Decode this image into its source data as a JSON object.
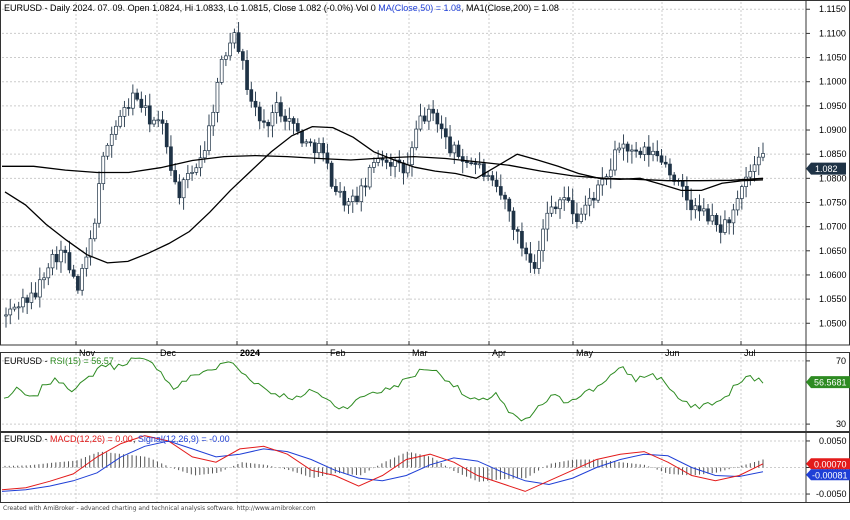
{
  "chart_data": {
    "type": "candlestick",
    "symbol": "EURUSD",
    "x_tick_labels": [
      "Nov",
      "Dec",
      "2024",
      "Feb",
      "Mar",
      "Apr",
      "May",
      "Jun",
      "Jul"
    ],
    "price_panel": {
      "header": {
        "symbol": "EURUSD",
        "info": " - Daily 2024. 07. 09. Open 1.0824, Hi 1.0833, Lo 1.0815, Close 1.082 (-0.0%) Vol 0 ",
        "ma50_label": "MA(Close,50) = 1.08",
        "ma_sep": ", ",
        "ma200_label": "MA1(Close,200) = 1.08"
      },
      "ylim": [
        1.0455,
        1.1165
      ],
      "y_ticks": [
        "1.0500",
        "1.0550",
        "1.0600",
        "1.0650",
        "1.0700",
        "1.0750",
        "1.0800",
        "1.0850",
        "1.0900",
        "1.0950",
        "1.1000",
        "1.1050",
        "1.1100",
        "1.1150"
      ],
      "last_close_label": "1.082",
      "last_close": 1.082,
      "close_trajectory": [
        1.0515,
        1.0545,
        1.0555,
        1.063,
        1.065,
        1.0565,
        1.0675,
        1.0875,
        1.0925,
        1.0975,
        1.0925,
        1.0905,
        1.0765,
        1.081,
        1.087,
        1.1025,
        1.1115,
        1.0975,
        1.0905,
        1.095,
        1.0915,
        1.087,
        1.0865,
        1.078,
        1.0745,
        1.0775,
        1.085,
        1.0835,
        1.081,
        1.0925,
        1.0935,
        1.0865,
        1.084,
        1.083,
        1.0785,
        1.075,
        1.0665,
        1.0625,
        1.0735,
        1.0765,
        1.0715,
        1.076,
        1.0795,
        1.0875,
        1.0845,
        1.0855,
        1.084,
        1.079,
        1.074,
        1.0725,
        1.0695,
        1.073,
        1.081,
        1.084
      ],
      "ma50_trajectory": [
        1.0772,
        1.0745,
        1.0705,
        1.0672,
        1.0642,
        1.0625,
        1.0628,
        1.0645,
        1.0665,
        1.069,
        1.073,
        1.0775,
        1.0815,
        1.0855,
        1.0888,
        1.0907,
        1.0905,
        1.0885,
        1.0855,
        1.0838,
        1.0823,
        1.0815,
        1.081,
        1.08,
        1.0825,
        1.085,
        1.0838,
        1.0825,
        1.081,
        1.08,
        1.0798,
        1.08,
        1.0788,
        1.0775,
        1.0775,
        1.079,
        1.0795,
        1.0797
      ],
      "ma200_trajectory": [
        1.0825,
        1.0825,
        1.0817,
        1.0812,
        1.0812,
        1.0822,
        1.0837,
        1.0845,
        1.0847,
        1.0845,
        1.0841,
        1.0838,
        1.0842,
        1.0845,
        1.0841,
        1.0834,
        1.0827,
        1.0815,
        1.0805,
        1.08,
        1.0798,
        1.0795,
        1.0795,
        1.0796,
        1.08
      ]
    },
    "rsi_panel": {
      "header": {
        "symbol": "EURUSD",
        "sep": " - ",
        "rsi_label": "RSI(15) = 56.57"
      },
      "ylim": [
        25,
        75
      ],
      "y_ticks": [
        "70",
        "30"
      ],
      "last_value": 56.57,
      "last_value_label": "56.5681",
      "trajectory": [
        46,
        52,
        45,
        56,
        58,
        51,
        59,
        68,
        66,
        71,
        70,
        66,
        52,
        58,
        63,
        65,
        70,
        62,
        56,
        50,
        48,
        46,
        52,
        45,
        40,
        44,
        50,
        51,
        55,
        60,
        66,
        62,
        55,
        46,
        44,
        50,
        36,
        31,
        40,
        48,
        44,
        49,
        52,
        60,
        65,
        58,
        62,
        57,
        46,
        40,
        43,
        44,
        54,
        60,
        56.57
      ]
    },
    "macd_panel": {
      "header": {
        "symbol": "EURUSD",
        "sep": " - ",
        "macd_label": "MACD(12,26) = 0.00",
        "sep2": ", ",
        "signal_label": "Signal(12,26,9) = -0.00"
      },
      "ylim": [
        -0.0065,
        0.0065
      ],
      "y_ticks": [
        "0.0050",
        "0.0000",
        "-0.0050"
      ],
      "macd_value_label": "0.00070",
      "signal_value_label": "-0.00081",
      "macd_trajectory": [
        -0.0042,
        -0.0038,
        -0.0026,
        -0.0012,
        0.002,
        0.0045,
        0.006,
        0.005,
        0.002,
        0.001,
        0.0035,
        0.004,
        0.0025,
        -0.0005,
        -0.0015,
        -0.0035,
        -0.0015,
        0.0015,
        0.0025,
        0.001,
        -0.0015,
        -0.003,
        -0.0045,
        -0.0025,
        -0.0005,
        0.0015,
        0.0025,
        0.003,
        0.001,
        -0.0015,
        -0.0025,
        -0.0015,
        0.0007
      ],
      "signal_trajectory": [
        -0.0045,
        -0.0042,
        -0.0035,
        -0.0025,
        -0.001,
        0.002,
        0.004,
        0.005,
        0.0035,
        0.002,
        0.0025,
        0.0035,
        0.003,
        0.0015,
        -0.0005,
        -0.002,
        -0.0025,
        -0.0015,
        0.0005,
        0.0018,
        0.0012,
        -0.0008,
        -0.0025,
        -0.0032,
        -0.002,
        0.0,
        0.0015,
        0.0025,
        0.0022,
        0.0,
        -0.0015,
        -0.0017,
        -0.0008
      ]
    },
    "colors": {
      "candle_up": "#ffffff",
      "candle_down": "#1f3346",
      "candle_outline": "#1f3346",
      "ma": "#000000",
      "rsi_line": "#2e8b22",
      "macd_line": "#e31b1b",
      "signal_line": "#1f3fd6",
      "histogram": "#555555",
      "grid": "#cccccc",
      "frame": "#333333",
      "last_price_box": "#1f3346",
      "rsi_box": "#2e8b22",
      "macd_box": "#e31b1b",
      "signal_box": "#1f3fd6"
    }
  },
  "footer": "Created with AmiBroker - advanced charting and technical analysis software. http://www.amibroker.com"
}
